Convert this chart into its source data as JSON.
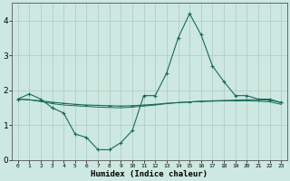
{
  "xlabel": "Humidex (Indice chaleur)",
  "background_color": "#cce8e0",
  "grid_color": "#b0c8c0",
  "line_color": "#1a6b5a",
  "y_line1": [
    1.75,
    1.9,
    1.75,
    1.5,
    1.35,
    0.75,
    0.65,
    0.3,
    0.3,
    0.5,
    0.85,
    1.85,
    1.85,
    2.5,
    3.5,
    4.2,
    3.6,
    2.7,
    2.25,
    1.85,
    1.85,
    1.75,
    1.75,
    1.65
  ],
  "y_line2": [
    1.75,
    1.73,
    1.7,
    1.66,
    1.63,
    1.6,
    1.58,
    1.57,
    1.56,
    1.55,
    1.56,
    1.58,
    1.6,
    1.63,
    1.65,
    1.67,
    1.69,
    1.7,
    1.71,
    1.72,
    1.73,
    1.73,
    1.72,
    1.65
  ],
  "y_line3": [
    1.75,
    1.73,
    1.68,
    1.62,
    1.58,
    1.56,
    1.54,
    1.52,
    1.51,
    1.5,
    1.52,
    1.55,
    1.58,
    1.62,
    1.65,
    1.67,
    1.68,
    1.69,
    1.7,
    1.7,
    1.7,
    1.69,
    1.67,
    1.6
  ],
  "ylim": [
    0,
    4.5
  ],
  "xlim": [
    -0.5,
    23.5
  ],
  "yticks": [
    0,
    1,
    2,
    3,
    4
  ],
  "xticks": [
    0,
    1,
    2,
    3,
    4,
    5,
    6,
    7,
    8,
    9,
    10,
    11,
    12,
    13,
    14,
    15,
    16,
    17,
    18,
    19,
    20,
    21,
    22,
    23
  ]
}
